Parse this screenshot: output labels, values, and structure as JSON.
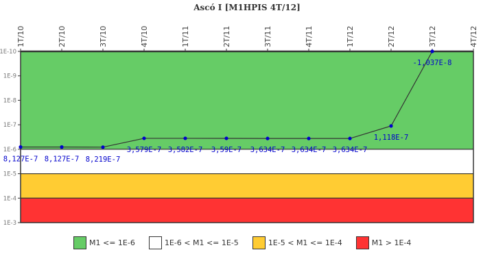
{
  "chart_data": {
    "type": "line",
    "title": "Ascó I [M1HPIS 4T/12]",
    "xlabel": "",
    "ylabel": "",
    "y_scale": "log",
    "y_axis_inverted": true,
    "y_ticks": [
      "1E-10",
      "1E-9",
      "1E-8",
      "1E-7",
      "1E-6",
      "1E-5",
      "1E-4",
      "1E-3"
    ],
    "categories": [
      "1T/10",
      "2T/10",
      "3T/10",
      "4T/10",
      "1T/11",
      "2T/11",
      "3T/11",
      "4T/11",
      "1T/12",
      "2T/12",
      "3T/12",
      "4T/12"
    ],
    "series": [
      {
        "name": "M1",
        "values": [
          8.127e-07,
          8.127e-07,
          8.219e-07,
          3.579e-07,
          3.582e-07,
          3.59e-07,
          3.634e-07,
          3.634e-07,
          3.634e-07,
          1.118e-07,
          -1.037e-08,
          null
        ],
        "labels": [
          "8,127E-7",
          "8,127E-7",
          "8,219E-7",
          "3,579E-7",
          "3,582E-7",
          "3,59E-7",
          "3,634E-7",
          "3,634E-7",
          "3,634E-7",
          "1,118E-7",
          "-1,037E-8",
          ""
        ]
      }
    ],
    "bands": [
      {
        "label": "M1 <= 1E-6",
        "from": "1E-10",
        "to": "1E-6",
        "color": "#66cc66"
      },
      {
        "label": "1E-6 < M1 <= 1E-5",
        "from": "1E-6",
        "to": "1E-5",
        "color": "#ffffff"
      },
      {
        "label": "1E-5 < M1 <= 1E-4",
        "from": "1E-5",
        "to": "1E-4",
        "color": "#ffcc33"
      },
      {
        "label": "M1 > 1E-4",
        "from": "1E-4",
        "to": "1E-3",
        "color": "#ff3333"
      }
    ],
    "legend_position": "bottom",
    "grid": false
  },
  "legend": [
    {
      "label": "M1 <= 1E-6",
      "color": "#66cc66"
    },
    {
      "label": "1E-6 < M1 <= 1E-5",
      "color": "#ffffff"
    },
    {
      "label": "1E-5 < M1 <= 1E-4",
      "color": "#ffcc33"
    },
    {
      "label": "M1 > 1E-4",
      "color": "#ff3333"
    }
  ],
  "colors": {
    "line": "#333333",
    "marker": "#0000cc",
    "label": "#0000cc",
    "axis": "#333333"
  }
}
